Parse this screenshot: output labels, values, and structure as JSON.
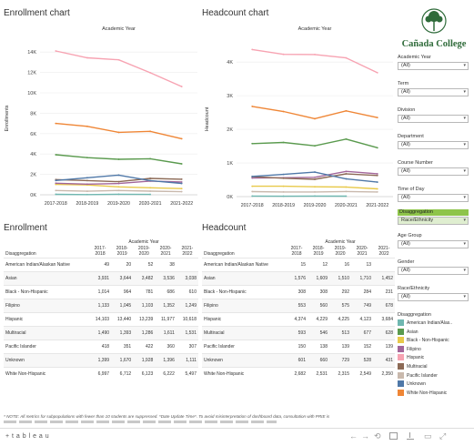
{
  "enrollment_chart": {
    "title": "Enrollment chart",
    "xgroup_label": "Academic Year",
    "ylabel": "Enrollments",
    "yticks": [
      "0K",
      "2K",
      "4K",
      "6K",
      "8K",
      "10K",
      "12K",
      "14K"
    ]
  },
  "headcount_chart": {
    "title": "Headcount chart",
    "xgroup_label": "Academic Year",
    "ylabel": "Headcount",
    "yticks": [
      "0K",
      "1K",
      "2K",
      "3K",
      "4K"
    ]
  },
  "years": [
    "2017-2018",
    "2018-2019",
    "2019-2020",
    "2020-2021",
    "2021-2022"
  ],
  "logo": {
    "text": "Cañada College"
  },
  "filters": [
    {
      "label": "Academic Year",
      "value": "(All)"
    },
    {
      "label": "Term",
      "value": "(All)"
    },
    {
      "label": "Division",
      "value": "(All)"
    },
    {
      "label": "Department",
      "value": "(All)"
    },
    {
      "label": "Course Number",
      "value": "(All)"
    },
    {
      "label": "Time of Day",
      "value": "(All)"
    }
  ],
  "disaggregation_selector": {
    "label": "Disaggregation",
    "value": "Race/Ethnicity"
  },
  "filters2": [
    {
      "label": "Age Group",
      "value": "(All)"
    },
    {
      "label": "Gender",
      "value": "(All)"
    },
    {
      "label": "Race/Ethnicity",
      "value": "(All)"
    }
  ],
  "legend": {
    "title": "Disaggregation",
    "items": [
      {
        "name": "American Indian/Alas..",
        "color": "#6fb7b0"
      },
      {
        "name": "Asian",
        "color": "#5a9a4e"
      },
      {
        "name": "Black - Non-Hispanic",
        "color": "#e8c94a"
      },
      {
        "name": "Filipino",
        "color": "#a2669a"
      },
      {
        "name": "Hispanic",
        "color": "#f7a3b2"
      },
      {
        "name": "Multiracial",
        "color": "#8c6a56"
      },
      {
        "name": "Pacific Islander",
        "color": "#c9b9ad"
      },
      {
        "name": "Unknown",
        "color": "#4f78a8"
      },
      {
        "name": "White Non-Hispanic",
        "color": "#ef8636"
      }
    ]
  },
  "enrollment_table": {
    "title": "Enrollment",
    "group_header": "Academic Year",
    "row_header": "Disaggregation",
    "col_top": [
      "2017-",
      "2018-",
      "2019-",
      "2020-",
      "2021-"
    ],
    "col_bottom": [
      "2018",
      "2019",
      "2020",
      "2021",
      "2022"
    ],
    "rows": [
      {
        "label": "American Indian/Alaskan Native",
        "values": [
          "49",
          "20",
          "52",
          "38",
          ""
        ]
      },
      {
        "label": "Asian",
        "values": [
          "3,931",
          "3,644",
          "3,482",
          "3,536",
          "3,038"
        ]
      },
      {
        "label": "Black - Non-Hispanic",
        "values": [
          "1,014",
          "964",
          "781",
          "686",
          "610"
        ]
      },
      {
        "label": "Filipino",
        "values": [
          "1,133",
          "1,045",
          "1,103",
          "1,352",
          "1,249"
        ]
      },
      {
        "label": "Hispanic",
        "values": [
          "14,103",
          "13,440",
          "13,239",
          "11,977",
          "10,618"
        ]
      },
      {
        "label": "Multiracial",
        "values": [
          "1,490",
          "1,393",
          "1,286",
          "1,611",
          "1,531"
        ]
      },
      {
        "label": "Pacific Islander",
        "values": [
          "418",
          "351",
          "422",
          "360",
          "307"
        ]
      },
      {
        "label": "Unknown",
        "values": [
          "1,399",
          "1,670",
          "1,928",
          "1,396",
          "1,111"
        ]
      },
      {
        "label": "White Non-Hispanic",
        "values": [
          "6,997",
          "6,712",
          "6,123",
          "6,222",
          "5,497"
        ]
      }
    ]
  },
  "headcount_table": {
    "title": "Headcount",
    "group_header": "Academic Year",
    "row_header": "Disaggregation",
    "col_top": [
      "2017-",
      "2018-",
      "2019-",
      "2020-",
      "2021-"
    ],
    "col_bottom": [
      "2018",
      "2019",
      "2020",
      "2021",
      "2022"
    ],
    "rows": [
      {
        "label": "American Indian/Alaskan Native",
        "values": [
          "15",
          "12",
          "16",
          "13",
          ""
        ]
      },
      {
        "label": "Asian",
        "values": [
          "1,576",
          "1,609",
          "1,510",
          "1,710",
          "1,452"
        ]
      },
      {
        "label": "Black - Non-Hispanic",
        "values": [
          "308",
          "308",
          "292",
          "284",
          "231"
        ]
      },
      {
        "label": "Filipino",
        "values": [
          "553",
          "560",
          "575",
          "749",
          "678"
        ]
      },
      {
        "label": "Hispanic",
        "values": [
          "4,374",
          "4,229",
          "4,225",
          "4,123",
          "3,684"
        ]
      },
      {
        "label": "Multiracial",
        "values": [
          "593",
          "546",
          "513",
          "677",
          "628"
        ]
      },
      {
        "label": "Pacific Islander",
        "values": [
          "150",
          "138",
          "139",
          "152",
          "139"
        ]
      },
      {
        "label": "Unknown",
        "values": [
          "601",
          "660",
          "729",
          "528",
          "431"
        ]
      },
      {
        "label": "White Non-Hispanic",
        "values": [
          "2,682",
          "2,531",
          "2,315",
          "2,549",
          "2,350"
        ]
      }
    ]
  },
  "note": "* NOTE: All metrics for subpopulations with fewer than 10 students are suppressed. *Date Update Time*. To avoid misinterpretation of dashboard data, consultation with PRIE is",
  "footer": {
    "brand": "+ t a b l e a u"
  },
  "chart_data": [
    {
      "type": "line",
      "title": "Enrollment chart",
      "xlabel": "Academic Year",
      "ylabel": "Enrollments",
      "ylim": [
        0,
        15000
      ],
      "x": [
        "2017-2018",
        "2018-2019",
        "2019-2020",
        "2020-2021",
        "2021-2022"
      ],
      "series": [
        {
          "name": "American Indian/Alaskan Native",
          "color": "#6fb7b0",
          "values": [
            49,
            20,
            52,
            38,
            null
          ]
        },
        {
          "name": "Asian",
          "color": "#5a9a4e",
          "values": [
            3931,
            3644,
            3482,
            3536,
            3038
          ]
        },
        {
          "name": "Black - Non-Hispanic",
          "color": "#e8c94a",
          "values": [
            1014,
            964,
            781,
            686,
            610
          ]
        },
        {
          "name": "Filipino",
          "color": "#a2669a",
          "values": [
            1133,
            1045,
            1103,
            1352,
            1249
          ]
        },
        {
          "name": "Hispanic",
          "color": "#f7a3b2",
          "values": [
            14103,
            13440,
            13239,
            11977,
            10618
          ]
        },
        {
          "name": "Multiracial",
          "color": "#8c6a56",
          "values": [
            1490,
            1393,
            1286,
            1611,
            1531
          ]
        },
        {
          "name": "Pacific Islander",
          "color": "#c9b9ad",
          "values": [
            418,
            351,
            422,
            360,
            307
          ]
        },
        {
          "name": "Unknown",
          "color": "#4f78a8",
          "values": [
            1399,
            1670,
            1928,
            1396,
            1111
          ]
        },
        {
          "name": "White Non-Hispanic",
          "color": "#ef8636",
          "values": [
            6997,
            6712,
            6123,
            6222,
            5497
          ]
        }
      ]
    },
    {
      "type": "line",
      "title": "Headcount chart",
      "xlabel": "Academic Year",
      "ylabel": "Headcount",
      "ylim": [
        0,
        4600
      ],
      "x": [
        "2017-2018",
        "2018-2019",
        "2019-2020",
        "2020-2021",
        "2021-2022"
      ],
      "series": [
        {
          "name": "American Indian/Alaskan Native",
          "color": "#6fb7b0",
          "values": [
            15,
            12,
            16,
            13,
            null
          ]
        },
        {
          "name": "Asian",
          "color": "#5a9a4e",
          "values": [
            1576,
            1609,
            1510,
            1710,
            1452
          ]
        },
        {
          "name": "Black - Non-Hispanic",
          "color": "#e8c94a",
          "values": [
            308,
            308,
            292,
            284,
            231
          ]
        },
        {
          "name": "Filipino",
          "color": "#a2669a",
          "values": [
            553,
            560,
            575,
            749,
            678
          ]
        },
        {
          "name": "Hispanic",
          "color": "#f7a3b2",
          "values": [
            4374,
            4229,
            4225,
            4123,
            3684
          ]
        },
        {
          "name": "Multiracial",
          "color": "#8c6a56",
          "values": [
            593,
            546,
            513,
            677,
            628
          ]
        },
        {
          "name": "Pacific Islander",
          "color": "#c9b9ad",
          "values": [
            150,
            138,
            139,
            152,
            139
          ]
        },
        {
          "name": "Unknown",
          "color": "#4f78a8",
          "values": [
            601,
            660,
            729,
            528,
            431
          ]
        },
        {
          "name": "White Non-Hispanic",
          "color": "#ef8636",
          "values": [
            2682,
            2531,
            2315,
            2549,
            2350
          ]
        }
      ]
    }
  ]
}
